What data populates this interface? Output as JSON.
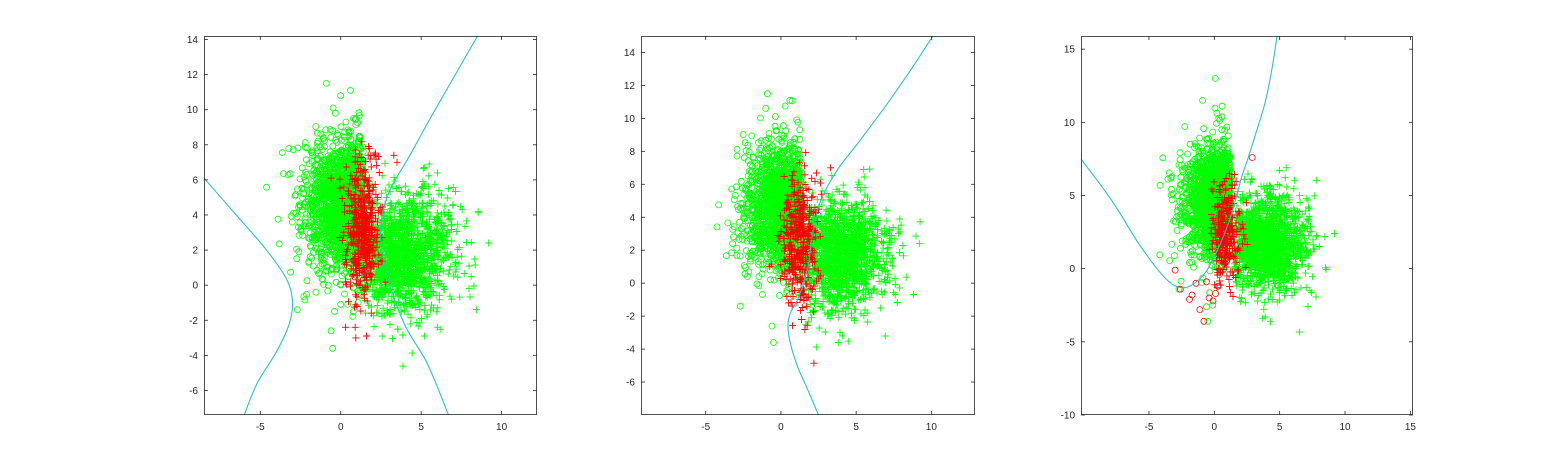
{
  "colors": {
    "class_a_correct": "#00ff00",
    "class_b_correct": "#00ff00",
    "misclassified": "#ff0000",
    "boundary": "#2ebfc6",
    "axes": "#262626"
  },
  "chart_data": [
    {
      "type": "scatter",
      "title": "",
      "xlabel": "",
      "ylabel": "",
      "xlim": [
        -8.5,
        12.2
      ],
      "ylim": [
        -7.4,
        14.2
      ],
      "xticks": [
        -5,
        0,
        5,
        10
      ],
      "yticks": [
        -6,
        -4,
        -2,
        0,
        2,
        4,
        6,
        8,
        10,
        12,
        14
      ],
      "grid": false,
      "legend": "none",
      "clusters": [
        {
          "marker": "o",
          "color": "#00ff00",
          "center": [
            0.4,
            4.6
          ],
          "spread": [
            1.35,
            1.9
          ],
          "count": 1500,
          "clip": [
            -9,
            1.4
          ]
        },
        {
          "marker": "+",
          "color": "#00ff00",
          "center": [
            3.8,
            1.8
          ],
          "spread": [
            1.55,
            1.65
          ],
          "count": 1500,
          "clip": [
            1.1,
            12
          ]
        },
        {
          "marker": "+",
          "color": "#ff0000",
          "center": [
            1.4,
            3.0
          ],
          "spread": [
            0.55,
            1.9
          ],
          "count": 450,
          "clip": [
            -2,
            3.4
          ]
        }
      ],
      "outliers": [
        {
          "marker": "o",
          "color": "#00ff00",
          "points": [
            [
              -0.9,
              11.5
            ],
            [
              0.6,
              11.1
            ],
            [
              -0.5,
              -3.6
            ],
            [
              -0.6,
              -2.6
            ],
            [
              -2.7,
              -1.4
            ]
          ]
        },
        {
          "marker": "+",
          "color": "#ff0000",
          "points": [
            [
              0.3,
              -2.4
            ],
            [
              0.9,
              -2.4
            ],
            [
              1.6,
              -2.9
            ],
            [
              1.9,
              -1.6
            ],
            [
              -0.6,
              6.1
            ],
            [
              3.3,
              7.4
            ],
            [
              3.5,
              7.0
            ]
          ]
        },
        {
          "marker": "+",
          "color": "#00ff00",
          "points": [
            [
              9.2,
              2.4
            ],
            [
              5.5,
              6.9
            ],
            [
              5.2,
              -2.9
            ],
            [
              7.1,
              1.2
            ]
          ]
        }
      ],
      "boundaries": [
        {
          "color": "#2ebfc6",
          "points": [
            [
              -8.5,
              6.1
            ],
            [
              -6.5,
              4.0
            ],
            [
              -4.7,
              2.1
            ],
            [
              -3.4,
              0.4
            ],
            [
              -3.0,
              -0.9
            ],
            [
              -3.2,
              -2.2
            ],
            [
              -4.0,
              -3.8
            ],
            [
              -5.2,
              -5.6
            ],
            [
              -6.0,
              -7.4
            ]
          ]
        },
        {
          "color": "#2ebfc6",
          "points": [
            [
              8.5,
              14.2
            ],
            [
              7.0,
              11.8
            ],
            [
              5.5,
              9.4
            ],
            [
              4.3,
              7.4
            ],
            [
              3.1,
              5.5
            ],
            [
              2.6,
              4.1
            ],
            [
              2.5,
              2.5
            ],
            [
              3.0,
              0.2
            ],
            [
              4.0,
              -2.3
            ],
            [
              5.4,
              -4.5
            ],
            [
              6.7,
              -7.4
            ]
          ]
        }
      ]
    },
    {
      "type": "scatter",
      "title": "",
      "xlabel": "",
      "ylabel": "",
      "xlim": [
        -9.3,
        12.9
      ],
      "ylim": [
        -8.0,
        15.0
      ],
      "xticks": [
        -5,
        0,
        5,
        10
      ],
      "yticks": [
        -6,
        -4,
        -2,
        0,
        2,
        4,
        6,
        8,
        10,
        12,
        14
      ],
      "grid": false,
      "legend": "none",
      "clusters": [
        {
          "marker": "o",
          "color": "#00ff00",
          "center": [
            0.4,
            4.6
          ],
          "spread": [
            1.35,
            1.9
          ],
          "count": 1500,
          "clip": [
            -9,
            1.3
          ]
        },
        {
          "marker": "+",
          "color": "#00ff00",
          "center": [
            3.8,
            1.8
          ],
          "spread": [
            1.55,
            1.65
          ],
          "count": 1500,
          "clip": [
            1.4,
            12
          ]
        },
        {
          "marker": "+",
          "color": "#ff0000",
          "center": [
            1.2,
            2.6
          ],
          "spread": [
            0.6,
            2.0
          ],
          "count": 380,
          "clip": [
            -1.5,
            3.2
          ]
        }
      ],
      "outliers": [
        {
          "marker": "o",
          "color": "#00ff00",
          "points": [
            [
              -0.9,
              11.5
            ],
            [
              0.6,
              11.1
            ],
            [
              -0.5,
              -3.6
            ],
            [
              -0.6,
              -2.6
            ],
            [
              -2.7,
              -1.4
            ]
          ]
        },
        {
          "marker": "+",
          "color": "#ff0000",
          "points": [
            [
              3.3,
              7.0
            ],
            [
              0.5,
              -1.2
            ],
            [
              0.8,
              -0.8
            ]
          ]
        },
        {
          "marker": "+",
          "color": "#00ff00",
          "points": [
            [
              9.2,
              2.4
            ],
            [
              5.5,
              6.9
            ],
            [
              4.1,
              -3.2
            ],
            [
              7.0,
              1.3
            ]
          ]
        }
      ],
      "boundaries": [
        {
          "color": "#2ebfc6",
          "points": [
            [
              10.1,
              15.0
            ],
            [
              8.6,
              12.9
            ],
            [
              7.0,
              10.8
            ],
            [
              5.2,
              8.6
            ],
            [
              3.7,
              6.8
            ],
            [
              2.6,
              4.9
            ],
            [
              2.1,
              3.0
            ],
            [
              1.8,
              1.0
            ],
            [
              1.2,
              -0.8
            ],
            [
              0.6,
              -1.9
            ],
            [
              0.5,
              -3.0
            ],
            [
              1.0,
              -4.8
            ],
            [
              1.8,
              -6.5
            ],
            [
              2.5,
              -8.0
            ]
          ]
        }
      ]
    },
    {
      "type": "scatter",
      "title": "",
      "xlabel": "",
      "ylabel": "",
      "xlim": [
        -10.2,
        15.2
      ],
      "ylim": [
        -10.0,
        15.9
      ],
      "xticks": [
        -5,
        0,
        5,
        10,
        15
      ],
      "yticks": [
        -10,
        -5,
        0,
        5,
        10,
        15
      ],
      "grid": false,
      "legend": "none",
      "clusters": [
        {
          "marker": "o",
          "color": "#00ff00",
          "center": [
            0.4,
            4.6
          ],
          "spread": [
            1.35,
            1.9
          ],
          "count": 1500,
          "clip": [
            -9,
            1.2
          ]
        },
        {
          "marker": "+",
          "color": "#00ff00",
          "center": [
            3.8,
            1.8
          ],
          "spread": [
            1.55,
            1.65
          ],
          "count": 1500,
          "clip": [
            1.5,
            12
          ]
        },
        {
          "marker": "+",
          "color": "#ff0000",
          "center": [
            0.9,
            2.4
          ],
          "spread": [
            0.55,
            1.9
          ],
          "count": 280,
          "clip": [
            -1.2,
            2.9
          ]
        }
      ],
      "outliers": [
        {
          "marker": "o",
          "color": "#00ff00",
          "points": [
            [
              -0.9,
              11.5
            ],
            [
              0.6,
              11.1
            ],
            [
              -0.5,
              -3.6
            ],
            [
              -0.6,
              -2.6
            ],
            [
              -2.7,
              -1.4
            ]
          ]
        },
        {
          "marker": "o",
          "color": "#ff0000",
          "points": [
            [
              -3.0,
              -0.1
            ],
            [
              -2.6,
              -1.4
            ],
            [
              -1.9,
              -2.1
            ],
            [
              -1.7,
              -1.8
            ],
            [
              -1.1,
              -2.8
            ],
            [
              -0.8,
              -3.6
            ],
            [
              -0.4,
              -2.0
            ],
            [
              -0.1,
              -2.2
            ],
            [
              0.1,
              -1.7
            ],
            [
              -0.6,
              -0.9
            ],
            [
              0.3,
              -1.2
            ],
            [
              -1.4,
              -1.0
            ],
            [
              2.9,
              7.6
            ]
          ]
        },
        {
          "marker": "+",
          "color": "#00ff00",
          "points": [
            [
              9.2,
              2.4
            ],
            [
              5.5,
              6.9
            ],
            [
              3.9,
              -3.3
            ],
            [
              7.0,
              1.2
            ]
          ]
        }
      ],
      "boundaries": [
        {
          "color": "#2ebfc6",
          "points": [
            [
              4.8,
              15.9
            ],
            [
              4.4,
              13.6
            ],
            [
              3.9,
              11.4
            ],
            [
              3.2,
              9.3
            ],
            [
              2.6,
              7.6
            ],
            [
              2.1,
              6.3
            ],
            [
              1.6,
              4.6
            ],
            [
              1.0,
              2.9
            ],
            [
              0.1,
              1.0
            ],
            [
              -0.9,
              -0.5
            ],
            [
              -2.3,
              -1.3
            ],
            [
              -3.7,
              -0.7
            ],
            [
              -5.7,
              1.6
            ],
            [
              -7.8,
              4.6
            ],
            [
              -10.2,
              7.5
            ]
          ]
        }
      ]
    }
  ]
}
